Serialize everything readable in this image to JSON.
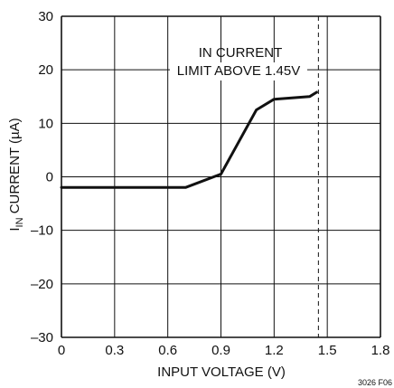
{
  "chart_data": {
    "type": "line",
    "xlabel": "INPUT VOLTAGE (V)",
    "ylabel_main": "I",
    "ylabel_sub": "IN",
    "ylabel_rest": " CURRENT (µA)",
    "xlim": [
      0,
      1.8
    ],
    "ylim": [
      -30,
      30
    ],
    "x_ticks": [
      0,
      0.3,
      0.6,
      0.9,
      1.2,
      1.5,
      1.8
    ],
    "x_tick_labels": [
      "0",
      "0.3",
      "0.6",
      "0.9",
      "1.2",
      "1.5",
      "1.8"
    ],
    "y_ticks": [
      -30,
      -20,
      -10,
      0,
      10,
      20,
      30
    ],
    "y_tick_labels": [
      "–30",
      "–20",
      "–10",
      "0",
      "10",
      "20",
      "30"
    ],
    "grid": true,
    "series": [
      {
        "x": [
          0,
          0.7,
          0.9,
          1.1,
          1.2,
          1.4,
          1.44
        ],
        "y": [
          -2,
          -2,
          0.5,
          12.5,
          14.5,
          15.0,
          15.8
        ]
      }
    ],
    "reference_line": {
      "x": 1.45,
      "style": "dashed"
    },
    "annotation_lines": [
      "IN CURRENT",
      "LIMIT ABOVE 1.45V"
    ],
    "figure_code": "3026 F06"
  }
}
